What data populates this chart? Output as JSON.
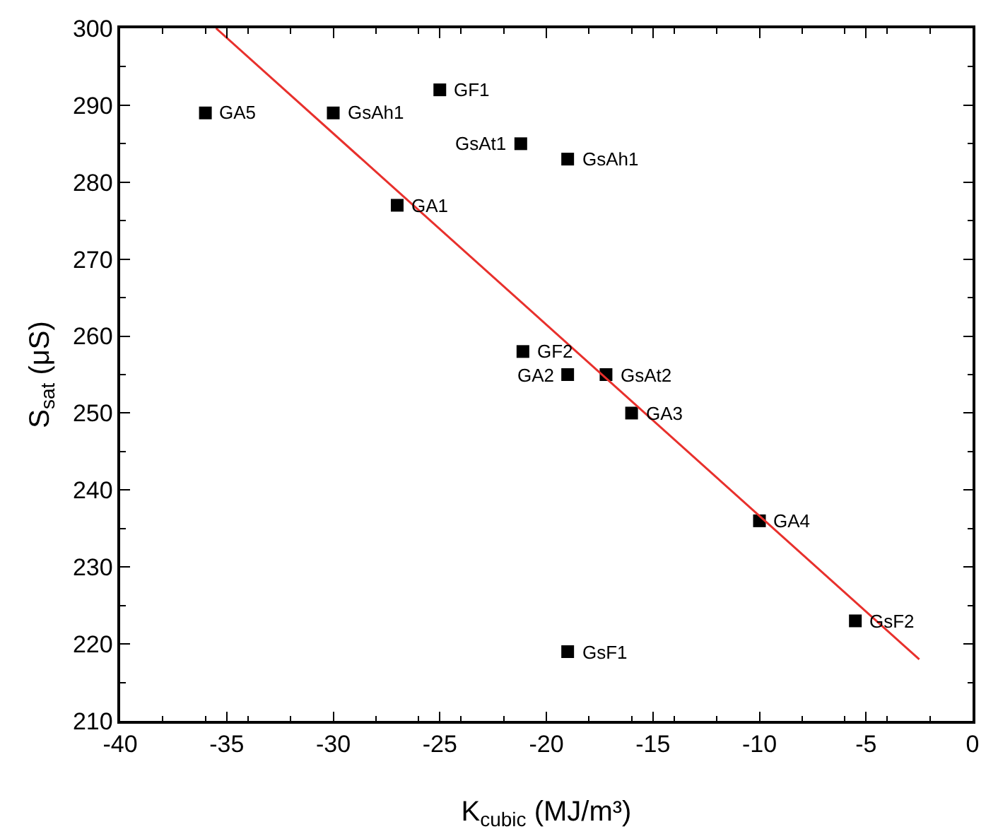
{
  "chart_data": {
    "type": "scatter",
    "xlabel": "K$_{cubic}$ (MJ/m³)",
    "ylabel": "S$_{sat}$ (μS)",
    "xlim": [
      -40,
      0
    ],
    "xticks": [
      -40,
      -35,
      -30,
      -25,
      -20,
      -15,
      -10,
      -5,
      0
    ],
    "ylim": [
      210,
      300
    ],
    "yticks": [
      210,
      220,
      230,
      240,
      250,
      260,
      270,
      280,
      290,
      300
    ],
    "grid": false,
    "marker": "square",
    "series": [
      {
        "color": "#000000",
        "x": [
          -36,
          -30,
          -25,
          -21.2,
          -19,
          -27,
          -21.1,
          -19,
          -17.2,
          -16,
          -10,
          -5.5,
          -19
        ],
        "values": [
          289,
          289,
          292,
          285,
          283,
          277,
          258,
          255,
          255,
          250,
          236,
          223,
          219
        ]
      },
      {
        "type": "line",
        "marker": "none",
        "color": "#e8302c",
        "x": [
          -35.5,
          -2.5
        ],
        "values": [
          300,
          218
        ]
      }
    ],
    "annotations": [
      {
        "text": "GA5",
        "x": -36,
        "y": 289
      },
      {
        "text": "GsAh1",
        "x": -30,
        "y": 289
      },
      {
        "text": "GF1",
        "x": -25,
        "y": 292
      },
      {
        "text": "GsAt1",
        "x": -21.2,
        "y": 285
      },
      {
        "text": "GsAh1",
        "x": -19,
        "y": 283
      },
      {
        "text": "GA1",
        "x": -27,
        "y": 277
      },
      {
        "text": "GF2",
        "x": -21.1,
        "y": 258
      },
      {
        "text": "GA2",
        "x": -19,
        "y": 255
      },
      {
        "text": "GsAt2",
        "x": -17.2,
        "y": 255
      },
      {
        "text": "GA3",
        "x": -16,
        "y": 250
      },
      {
        "text": "GA4",
        "x": -10,
        "y": 236
      },
      {
        "text": "GsF2",
        "x": -5.5,
        "y": 223
      },
      {
        "text": "GsF1",
        "x": -19,
        "y": 219
      }
    ]
  }
}
